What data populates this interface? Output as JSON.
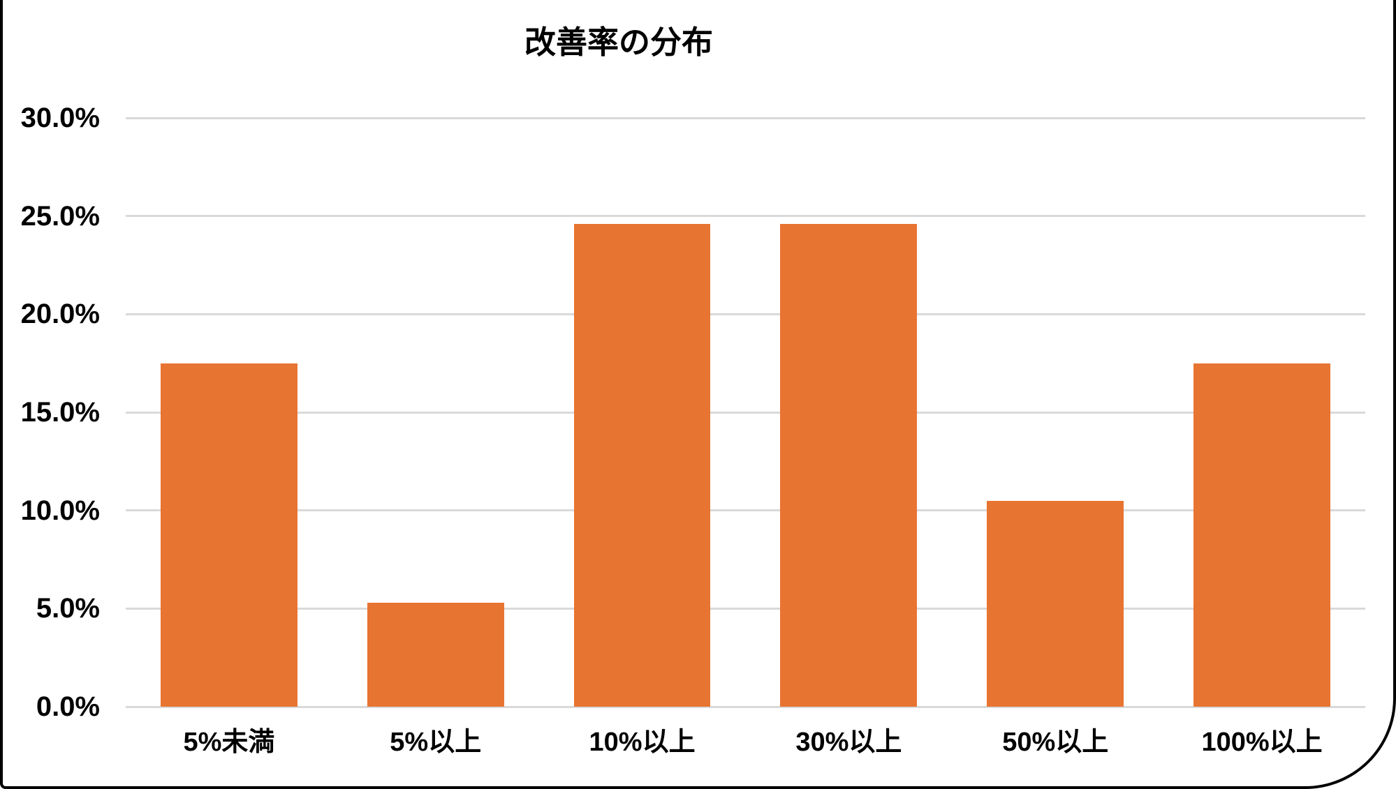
{
  "frame": {
    "background": "#ffffff",
    "border_color": "#000000"
  },
  "chart_data": {
    "type": "bar",
    "title": "改善率の分布",
    "categories": [
      "5%未満",
      "5%以上",
      "10%以上",
      "30%以上",
      "50%以上",
      "100%以上"
    ],
    "values": [
      17.5,
      5.3,
      24.6,
      24.6,
      10.5,
      17.5
    ],
    "value_unit": "%",
    "xlabel": "",
    "ylabel": "",
    "ylim": [
      0,
      30
    ],
    "y_ticks": [
      {
        "value": 0,
        "label": "0.0%"
      },
      {
        "value": 5,
        "label": "5.0%"
      },
      {
        "value": 10,
        "label": "10.0%"
      },
      {
        "value": 15,
        "label": "15.0%"
      },
      {
        "value": 20,
        "label": "20.0%"
      },
      {
        "value": 25,
        "label": "25.0%"
      },
      {
        "value": 30,
        "label": "30.0%"
      }
    ],
    "grid": true,
    "legend": false,
    "bar_color": "#e87431",
    "gridline_color": "#d9d9d9",
    "text_color": "#000000"
  }
}
